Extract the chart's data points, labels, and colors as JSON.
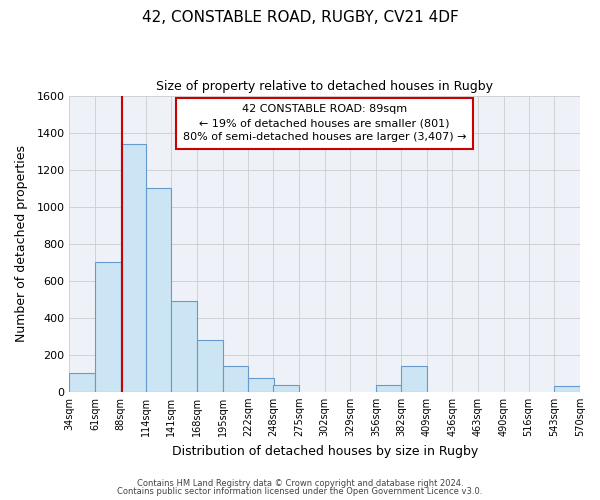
{
  "title1": "42, CONSTABLE ROAD, RUGBY, CV21 4DF",
  "title2": "Size of property relative to detached houses in Rugby",
  "xlabel": "Distribution of detached houses by size in Rugby",
  "ylabel": "Number of detached properties",
  "bar_left_edges": [
    34,
    61,
    88,
    114,
    141,
    168,
    195,
    222,
    248,
    275,
    302,
    329,
    356,
    382,
    409,
    436,
    463,
    490,
    516,
    543
  ],
  "bar_heights": [
    100,
    700,
    1340,
    1100,
    490,
    280,
    140,
    75,
    35,
    0,
    0,
    0,
    35,
    140,
    0,
    0,
    0,
    0,
    0,
    30
  ],
  "bin_width": 27,
  "bar_facecolor": "#cce5f5",
  "bar_edgecolor": "#6699cc",
  "property_value": 89,
  "vline_color": "#cc0000",
  "ylim": [
    0,
    1600
  ],
  "yticks": [
    0,
    200,
    400,
    600,
    800,
    1000,
    1200,
    1400,
    1600
  ],
  "xtick_labels": [
    "34sqm",
    "61sqm",
    "88sqm",
    "114sqm",
    "141sqm",
    "168sqm",
    "195sqm",
    "222sqm",
    "248sqm",
    "275sqm",
    "302sqm",
    "329sqm",
    "356sqm",
    "382sqm",
    "409sqm",
    "436sqm",
    "463sqm",
    "490sqm",
    "516sqm",
    "543sqm",
    "570sqm"
  ],
  "annotation_title": "42 CONSTABLE ROAD: 89sqm",
  "annotation_line1": "← 19% of detached houses are smaller (801)",
  "annotation_line2": "80% of semi-detached houses are larger (3,407) →",
  "annotation_box_facecolor": "#ffffff",
  "annotation_box_edgecolor": "#cc0000",
  "grid_color": "#cccccc",
  "bg_color": "#ffffff",
  "ax_bg_color": "#eef2f8",
  "footer1": "Contains HM Land Registry data © Crown copyright and database right 2024.",
  "footer2": "Contains public sector information licensed under the Open Government Licence v3.0."
}
